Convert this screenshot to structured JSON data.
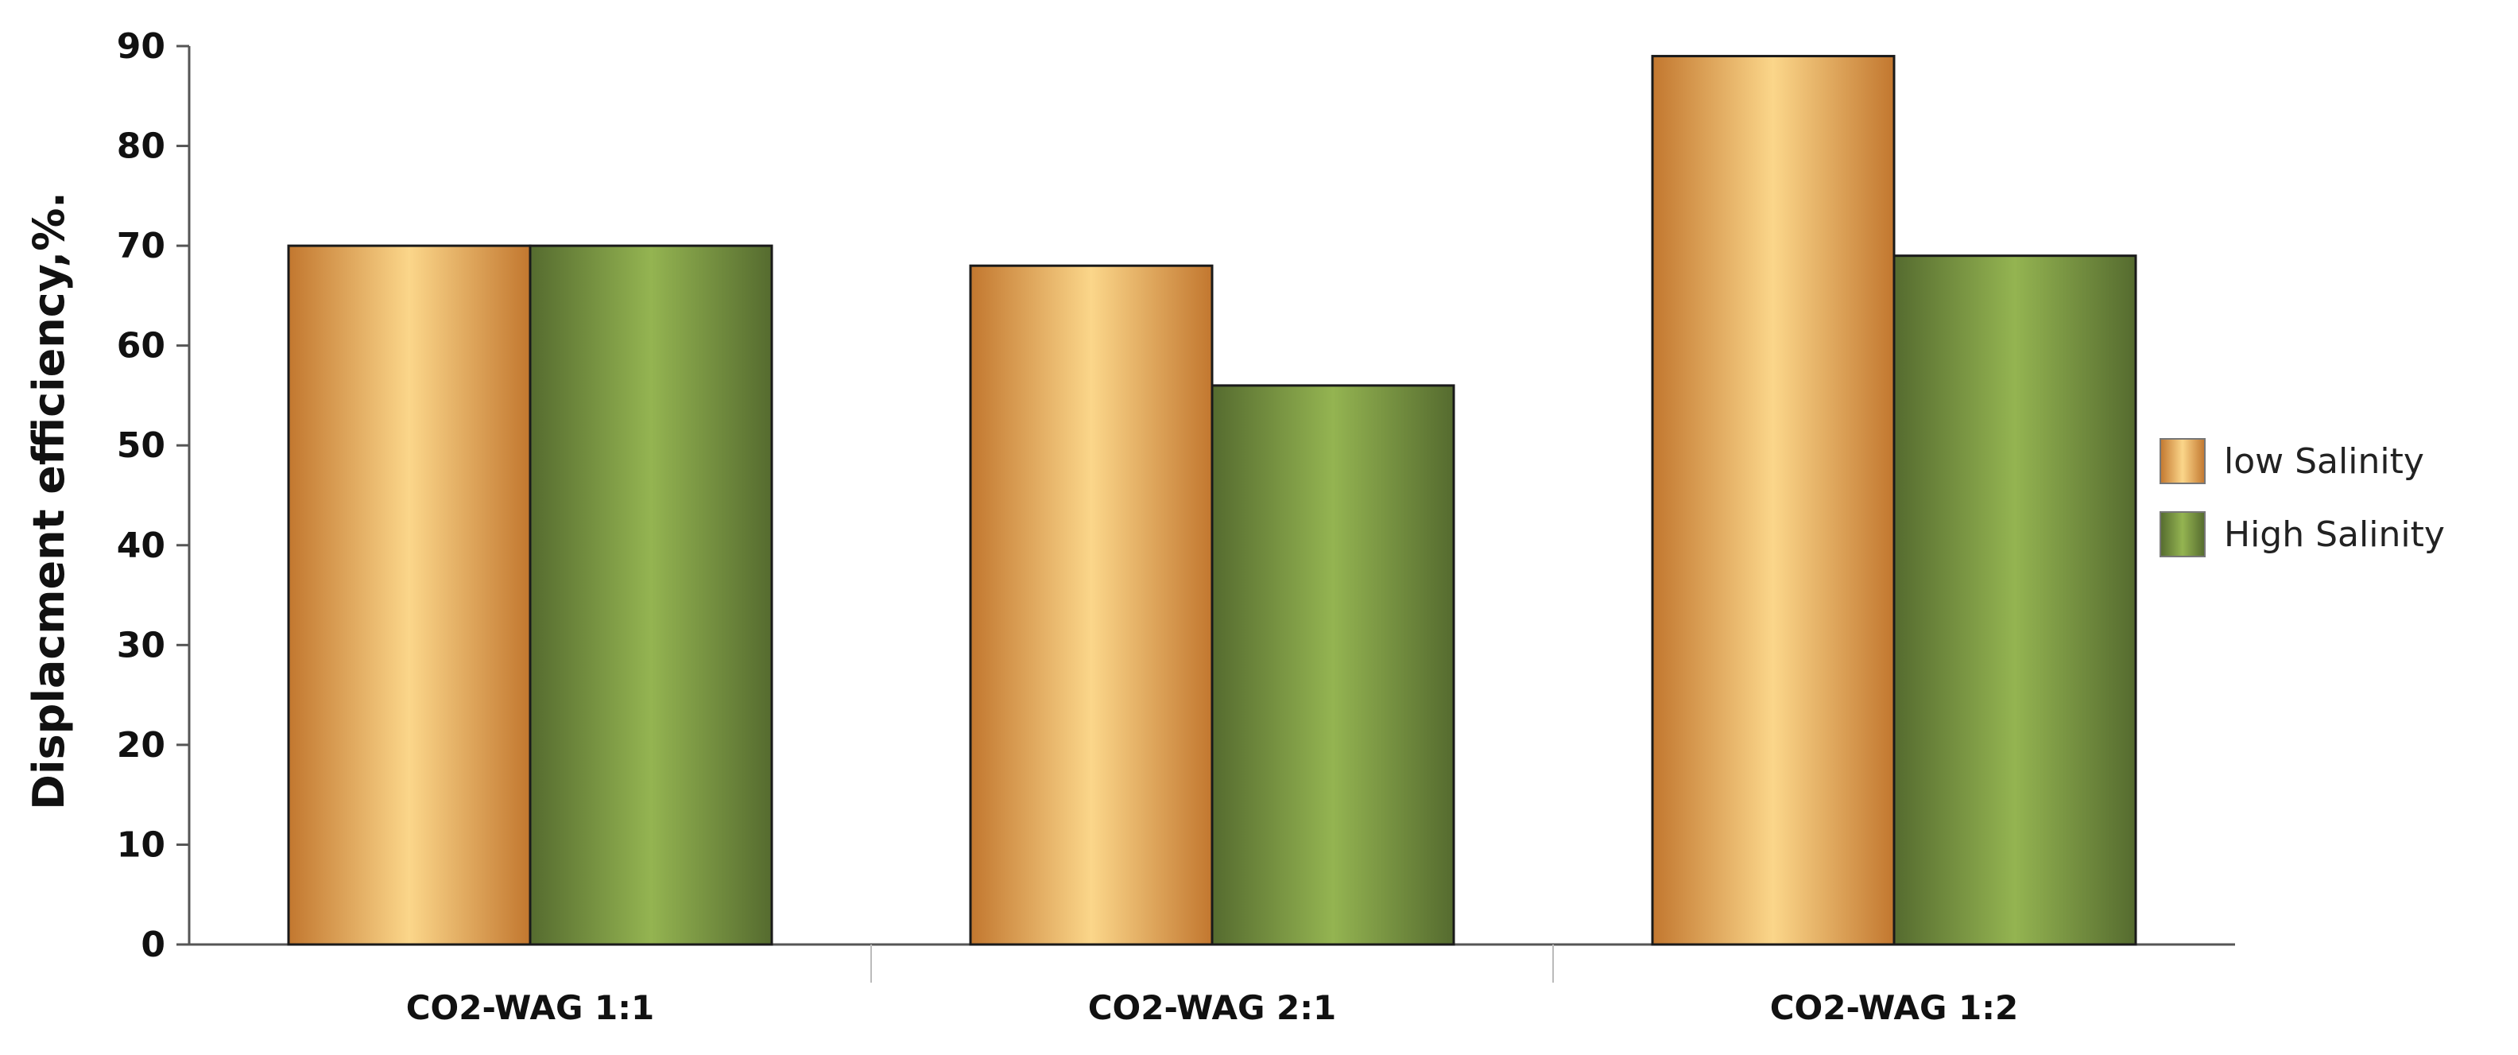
{
  "chart_data": {
    "type": "bar",
    "title": "",
    "xlabel": "",
    "ylabel": "Displacment efficiency,%.",
    "categories": [
      "CO2-WAG 1:1",
      "CO2-WAG 2:1",
      "CO2-WAG 1:2"
    ],
    "series": [
      {
        "name": "low Salinity",
        "values": [
          70,
          68,
          89
        ]
      },
      {
        "name": "High Salinity",
        "values": [
          70,
          56,
          69
        ]
      }
    ],
    "ylim": [
      0,
      90
    ],
    "yticks": [
      0,
      10,
      20,
      30,
      40,
      50,
      60,
      70,
      80,
      90
    ],
    "grid": false,
    "legend_position": "right",
    "colors": {
      "low_salinity": {
        "edge": "#c2772f",
        "mid": "#fbd68a"
      },
      "high_salinity": {
        "edge": "#556b2f",
        "mid": "#94b451"
      },
      "bar_outline": "#1a1a1a",
      "axis": "#555555"
    }
  }
}
